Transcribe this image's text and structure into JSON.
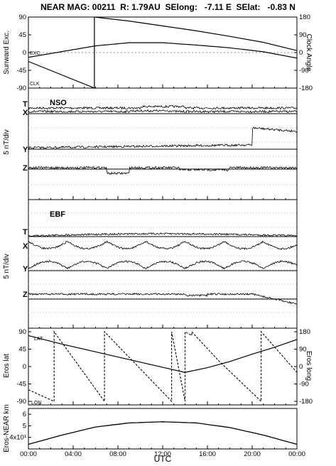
{
  "header": {
    "title": "NEAR MAG: 00211  R: 1.79AU  SElong:   -7.11 E  SElat:   -0.83 N"
  },
  "chart_data": [
    {
      "type": "line",
      "panel": "sunward-exc",
      "ylabel": "Sunward Exc.",
      "y2label": "Clock Angle",
      "yticks": [
        "90",
        "45",
        "0",
        "-45",
        "-90"
      ],
      "y2ticks": [
        "180",
        "90",
        "0",
        "-90",
        "-180"
      ],
      "ylim": [
        -90,
        90
      ],
      "series": [
        {
          "name": "EXC.",
          "x": [
            0,
            6,
            9,
            12,
            15,
            18,
            21,
            24
          ],
          "y": [
            -12,
            17,
            25,
            25,
            19,
            12,
            2,
            -14
          ]
        },
        {
          "name": "CLK",
          "x": [
            0,
            5.9,
            5.9,
            9,
            12,
            15,
            18,
            21,
            24
          ],
          "y": [
            -45,
            -180,
            180,
            160,
            135,
            110,
            82,
            52,
            10
          ]
        }
      ]
    },
    {
      "type": "line",
      "panel": "nso",
      "label": "NSO",
      "ylabel": "5 nT/div",
      "traces": [
        "T",
        "X",
        "Y",
        "Z"
      ]
    },
    {
      "type": "line",
      "panel": "ebf",
      "label": "EBF",
      "ylabel": "5 nT/div",
      "traces": [
        "T",
        "X",
        "Y",
        "Z"
      ]
    },
    {
      "type": "line",
      "panel": "eros",
      "ylabel": "Eros lat",
      "y2label": "Eros long",
      "yticks": [
        "90",
        "45",
        "0",
        "-45",
        "-90"
      ],
      "y2ticks": [
        "180",
        "90",
        "0",
        "-90",
        "-180"
      ],
      "ylim": [
        -90,
        90
      ],
      "series": [
        {
          "name": "LAT",
          "x": [
            0,
            3,
            6,
            9,
            12,
            14,
            16,
            18,
            20,
            22,
            24
          ],
          "y": [
            80,
            58,
            38,
            18,
            -2,
            -15,
            -3,
            13,
            32,
            50,
            70
          ]
        },
        {
          "name": "LON",
          "x": [
            0,
            2.3,
            2.3,
            6.8,
            6.8,
            12.8,
            12.8,
            14,
            14,
            14.6,
            14.6,
            17,
            20.8,
            20.8,
            24
          ],
          "y": [
            -120,
            -180,
            180,
            -180,
            180,
            -180,
            180,
            -180,
            180,
            160,
            180,
            30,
            -180,
            180,
            -30
          ]
        }
      ]
    },
    {
      "type": "line",
      "panel": "eros-near-km",
      "ylabel": "Eros-NEAR km",
      "yticks": [
        "6",
        "5",
        "4x10¹"
      ],
      "ylim": [
        3,
        6.5
      ],
      "series": [
        {
          "name": "distance",
          "x": [
            0,
            3,
            6,
            9,
            12,
            15,
            18,
            21,
            24
          ],
          "y": [
            3.4,
            4.2,
            4.9,
            5.25,
            5.35,
            5.25,
            4.85,
            4.2,
            3.4
          ]
        }
      ]
    }
  ],
  "xaxis": {
    "label": "UTC",
    "ticks": [
      "00:00",
      "04:00",
      "08:00",
      "12:00",
      "16:00",
      "20:00",
      "00:00"
    ]
  },
  "labels": {
    "exc": "EXC.",
    "clk": "CLK",
    "lat": "LAT",
    "lon": "LON",
    "t": "T",
    "x": "X",
    "y": "Y",
    "z": "Z"
  }
}
